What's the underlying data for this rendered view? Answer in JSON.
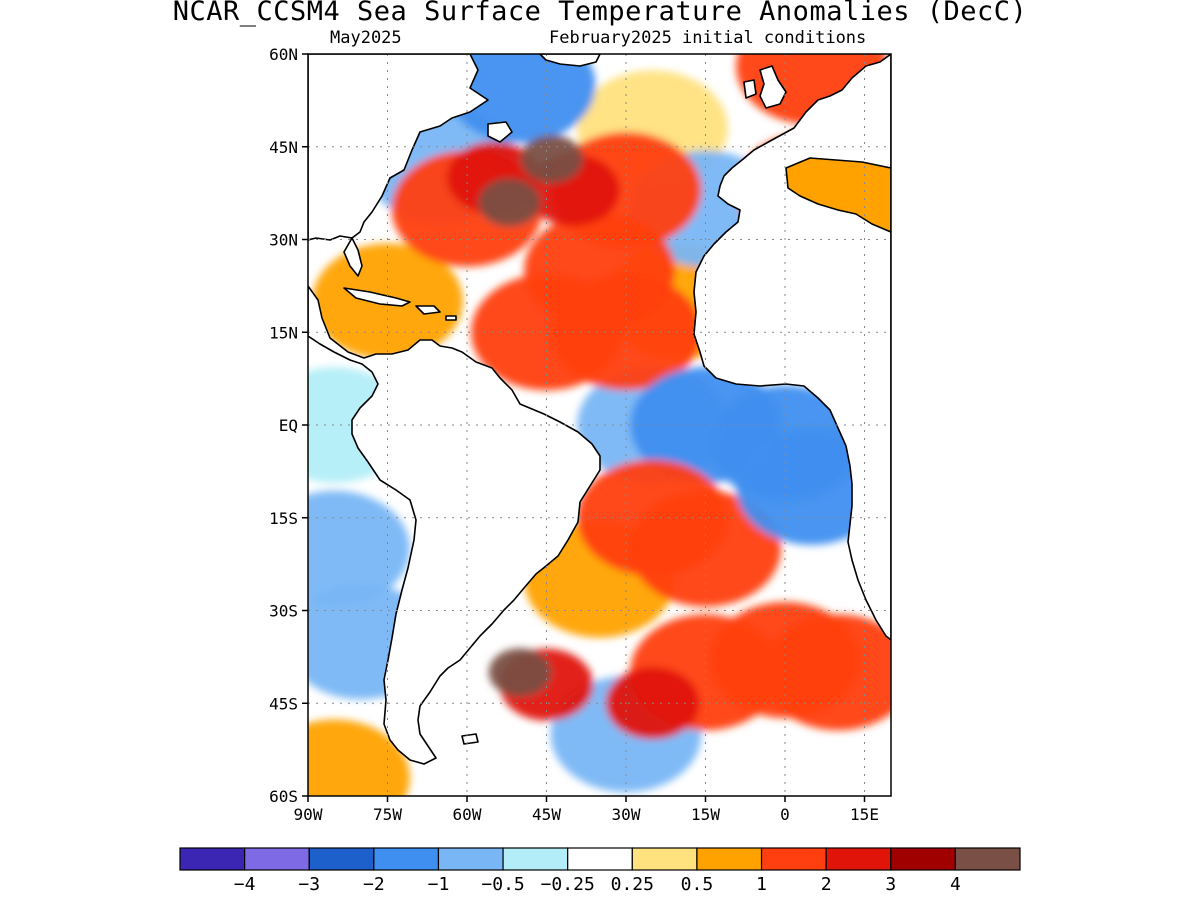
{
  "title": "NCAR_CCSM4 Sea Surface Temperature Anomalies (DecC)",
  "subtitle_left": "May2025",
  "subtitle_right": "February2025 initial conditions",
  "map": {
    "lon_range": [
      -90,
      20
    ],
    "lat_range": [
      -60,
      60
    ],
    "lat_ticks": [
      {
        "value": 60,
        "label": "60N"
      },
      {
        "value": 45,
        "label": "45N"
      },
      {
        "value": 30,
        "label": "30N"
      },
      {
        "value": 15,
        "label": "15N"
      },
      {
        "value": 0,
        "label": "EQ"
      },
      {
        "value": -15,
        "label": "15S"
      },
      {
        "value": -30,
        "label": "30S"
      },
      {
        "value": -45,
        "label": "45S"
      },
      {
        "value": -60,
        "label": "60S"
      }
    ],
    "lon_ticks": [
      {
        "value": -90,
        "label": "90W"
      },
      {
        "value": -75,
        "label": "75W"
      },
      {
        "value": -60,
        "label": "60W"
      },
      {
        "value": -45,
        "label": "45W"
      },
      {
        "value": -30,
        "label": "30W"
      },
      {
        "value": -15,
        "label": "15W"
      },
      {
        "value": 0,
        "label": "0"
      },
      {
        "value": 15,
        "label": "15E"
      }
    ],
    "grid": true
  },
  "colorbar": {
    "colors": [
      "#3b26b3",
      "#7f6ae6",
      "#1d5fcb",
      "#3f8ff0",
      "#78b6f6",
      "#b3eef8",
      "#ffffff",
      "#ffe27e",
      "#ffa200",
      "#ff3f10",
      "#e01408",
      "#a00000",
      "#7a4f45"
    ],
    "labels": [
      "−4",
      "−3",
      "−2",
      "−1",
      "−0.5",
      "−0.25",
      "0.25",
      "0.5",
      "1",
      "2",
      "3",
      "4"
    ]
  },
  "anomalies": [
    {
      "lon": -44,
      "lat": 43,
      "value": 4.5
    },
    {
      "lon": -52,
      "lat": 36,
      "value": 4.5
    },
    {
      "lon": -55,
      "lat": 40,
      "value": 2.5
    },
    {
      "lon": -40,
      "lat": 38,
      "value": 2.2
    },
    {
      "lon": -30,
      "lat": 38,
      "value": 1.5
    },
    {
      "lon": -60,
      "lat": 35,
      "value": 1.5
    },
    {
      "lon": -35,
      "lat": 25,
      "value": 1.2
    },
    {
      "lon": -45,
      "lat": 15,
      "value": 1.2
    },
    {
      "lon": -30,
      "lat": 15,
      "value": 1.0
    },
    {
      "lon": -20,
      "lat": 20,
      "value": 0.8
    },
    {
      "lon": -75,
      "lat": 20,
      "value": 0.8
    },
    {
      "lon": -25,
      "lat": 48,
      "value": 0.4
    },
    {
      "lon": -50,
      "lat": 55,
      "value": -1.5
    },
    {
      "lon": -15,
      "lat": 35,
      "value": -1.0
    },
    {
      "lon": -65,
      "lat": 42,
      "value": -1.0
    },
    {
      "lon": 5,
      "lat": 58,
      "value": 1.2
    },
    {
      "lon": 5,
      "lat": 38,
      "value": 1.0
    },
    {
      "lon": -15,
      "lat": 0,
      "value": -1.5
    },
    {
      "lon": 0,
      "lat": -3,
      "value": -1.2
    },
    {
      "lon": -25,
      "lat": 0,
      "value": -0.6
    },
    {
      "lon": 5,
      "lat": -10,
      "value": -1.5
    },
    {
      "lon": -85,
      "lat": 0,
      "value": -0.4
    },
    {
      "lon": -85,
      "lat": -20,
      "value": -0.6
    },
    {
      "lon": -80,
      "lat": -35,
      "value": -0.6
    },
    {
      "lon": -25,
      "lat": -15,
      "value": 1.5
    },
    {
      "lon": -15,
      "lat": -20,
      "value": 1.0
    },
    {
      "lon": -35,
      "lat": -25,
      "value": 0.8
    },
    {
      "lon": -50,
      "lat": -40,
      "value": 4.5
    },
    {
      "lon": -45,
      "lat": -42,
      "value": 2.0
    },
    {
      "lon": -25,
      "lat": -45,
      "value": 2.0
    },
    {
      "lon": -15,
      "lat": -40,
      "value": 1.5
    },
    {
      "lon": 10,
      "lat": -40,
      "value": 1.5
    },
    {
      "lon": 0,
      "lat": -38,
      "value": 1.0
    },
    {
      "lon": -30,
      "lat": -50,
      "value": -0.6
    },
    {
      "lon": -85,
      "lat": -57,
      "value": 0.6
    }
  ]
}
